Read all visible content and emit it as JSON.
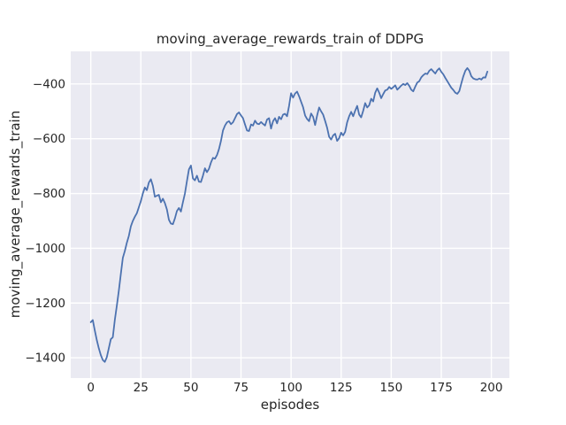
{
  "figure": {
    "background_color": "#FFFFFF",
    "axes_background_color": "#EAEAF2",
    "grid_color": "#FFFFFF",
    "text_color": "#262626"
  },
  "chart_data": {
    "type": "line",
    "title": "moving_average_rewards_train of DDPG",
    "xlabel": "episodes",
    "ylabel": "moving_average_rewards_train",
    "xlim": [
      -10,
      209
    ],
    "ylim": [
      -1474,
      -281
    ],
    "grid": true,
    "legend": "none",
    "x_ticks": {
      "values": [
        0,
        25,
        50,
        75,
        100,
        125,
        150,
        175,
        200
      ],
      "labels": [
        "0",
        "25",
        "50",
        "75",
        "100",
        "125",
        "150",
        "175",
        "200"
      ]
    },
    "y_ticks": {
      "values": [
        -400,
        -600,
        -800,
        -1000,
        -1200,
        -1400
      ],
      "labels": [
        "−400",
        "−600",
        "−800",
        "−1000",
        "−1200",
        "−1400"
      ]
    },
    "series": [
      {
        "name": "moving_average_rewards_train",
        "color": "#4C72B0",
        "x_start": 0,
        "x_step": 1,
        "y": [
          -1270,
          -1262,
          -1300,
          -1335,
          -1365,
          -1390,
          -1408,
          -1415,
          -1398,
          -1365,
          -1332,
          -1325,
          -1262,
          -1210,
          -1155,
          -1094,
          -1035,
          -1010,
          -980,
          -955,
          -920,
          -900,
          -885,
          -872,
          -850,
          -828,
          -800,
          -778,
          -788,
          -760,
          -748,
          -772,
          -812,
          -808,
          -805,
          -832,
          -819,
          -835,
          -858,
          -896,
          -910,
          -912,
          -891,
          -864,
          -853,
          -866,
          -832,
          -800,
          -755,
          -712,
          -698,
          -745,
          -752,
          -735,
          -757,
          -758,
          -735,
          -708,
          -722,
          -710,
          -687,
          -670,
          -673,
          -660,
          -638,
          -608,
          -570,
          -552,
          -540,
          -536,
          -547,
          -540,
          -525,
          -510,
          -504,
          -515,
          -525,
          -548,
          -570,
          -572,
          -548,
          -552,
          -534,
          -545,
          -547,
          -539,
          -546,
          -552,
          -530,
          -525,
          -563,
          -536,
          -525,
          -544,
          -520,
          -529,
          -512,
          -509,
          -518,
          -480,
          -434,
          -450,
          -435,
          -428,
          -445,
          -465,
          -485,
          -515,
          -528,
          -536,
          -508,
          -520,
          -550,
          -515,
          -486,
          -500,
          -512,
          -535,
          -560,
          -593,
          -603,
          -588,
          -582,
          -608,
          -598,
          -578,
          -588,
          -575,
          -540,
          -518,
          -502,
          -518,
          -498,
          -480,
          -512,
          -522,
          -498,
          -470,
          -486,
          -478,
          -454,
          -464,
          -432,
          -416,
          -432,
          -452,
          -437,
          -424,
          -421,
          -411,
          -418,
          -412,
          -405,
          -421,
          -414,
          -406,
          -400,
          -404,
          -397,
          -407,
          -421,
          -427,
          -410,
          -395,
          -390,
          -376,
          -368,
          -362,
          -364,
          -352,
          -346,
          -354,
          -362,
          -350,
          -343,
          -356,
          -365,
          -378,
          -390,
          -402,
          -414,
          -422,
          -432,
          -436,
          -426,
          -398,
          -372,
          -352,
          -342,
          -352,
          -372,
          -380,
          -383,
          -384,
          -380,
          -384,
          -376,
          -377,
          -355
        ]
      }
    ]
  }
}
